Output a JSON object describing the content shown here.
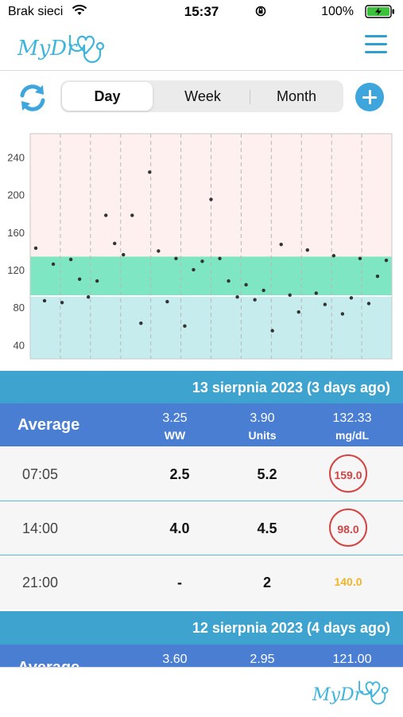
{
  "status_bar": {
    "carrier": "Brak sieci",
    "time": "15:37",
    "battery": "100%"
  },
  "header": {
    "logo_text": "MyDr"
  },
  "segmented": {
    "day": "Day",
    "week": "Week",
    "month": "Month",
    "selected": "day"
  },
  "colors": {
    "accent": "#3ea6dc",
    "high_zone": "#fdf0ef",
    "target_zone": "#7fe6c4",
    "low_zone": "#c6ecee",
    "high_value": "#d24545",
    "mid_value": "#f0b429"
  },
  "chart_data": {
    "type": "scatter",
    "title": "",
    "xlabel": "",
    "ylabel": "",
    "ylim": [
      25,
      265
    ],
    "yticks": [
      "40",
      "80",
      "120",
      "160",
      "200",
      "240"
    ],
    "grid": true,
    "target_range": [
      92,
      134
    ],
    "values": [
      143,
      87,
      126,
      85,
      131,
      110,
      91,
      108,
      178,
      148,
      136,
      178,
      63,
      224,
      140,
      86,
      132,
      60,
      120,
      129,
      195,
      132,
      108,
      91,
      104,
      88,
      98,
      55,
      147,
      93,
      75,
      141,
      95,
      83,
      135,
      73,
      90,
      132,
      84,
      113,
      130
    ]
  },
  "days": [
    {
      "date_label": "13 sierpnia 2023 (3 days ago)",
      "average": {
        "label": "Average",
        "ww": "3.25",
        "ww_unit": "WW",
        "units": "3.90",
        "units_unit": "Units",
        "glucose": "132.33",
        "glucose_unit": "mg/dL"
      },
      "entries": [
        {
          "time": "07:05",
          "ww": "2.5",
          "units": "5.2",
          "glucose": "159.0"
        },
        {
          "time": "14:00",
          "ww": "4.0",
          "units": "4.5",
          "glucose": "98.0"
        },
        {
          "time": "21:00",
          "ww": "-",
          "units": "2",
          "glucose": "140.0"
        }
      ]
    },
    {
      "date_label": "12 sierpnia 2023 (4 days ago)",
      "average": {
        "label": "Average",
        "ww": "3.60",
        "units": "2.95",
        "glucose": "121.00"
      }
    }
  ],
  "footer": {
    "logo_text": "MyDr"
  }
}
